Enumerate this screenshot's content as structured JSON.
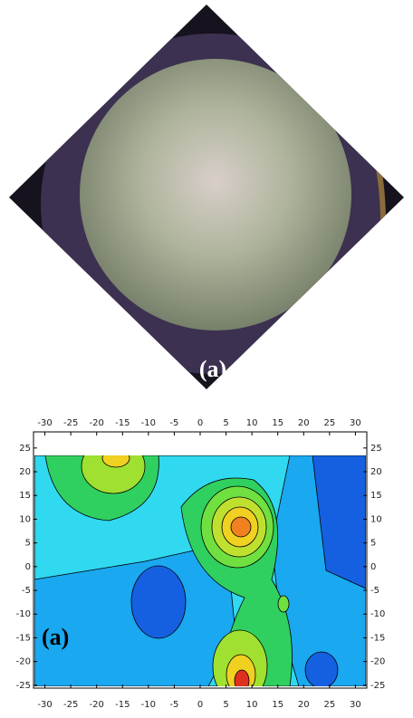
{
  "photo_panel": {
    "label": "(a)"
  },
  "chart_data": {
    "type": "contour",
    "label": "(a)",
    "xlim": [
      -32.2,
      32.2
    ],
    "xticks": [
      -30,
      -25,
      -20,
      -15,
      -10,
      -5,
      0,
      5,
      10,
      15,
      20,
      25,
      30
    ],
    "ylim": [
      -25.6,
      28.4
    ],
    "yticks": [
      -25,
      -20,
      -15,
      -10,
      -5,
      0,
      5,
      10,
      15,
      20,
      25
    ]
  }
}
